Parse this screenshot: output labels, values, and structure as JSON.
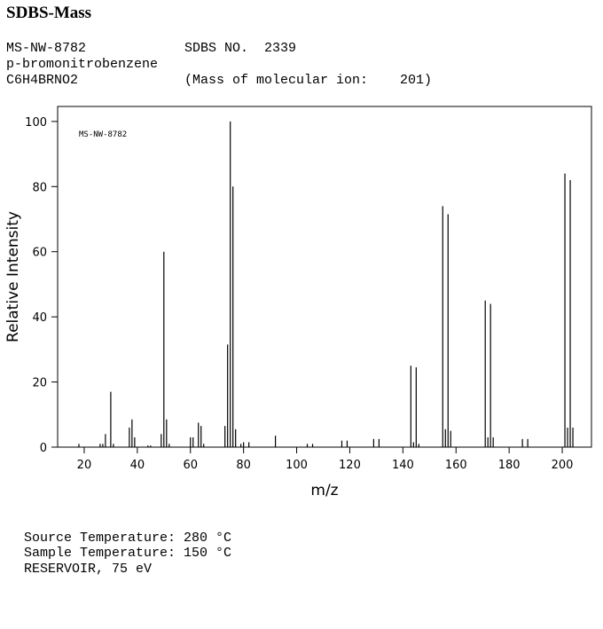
{
  "header": {
    "title": "SDBS-Mass",
    "code": "MS-NW-8782",
    "sdbs_no": "SDBS NO.  2339",
    "compound": "p-bromonitrobenzene",
    "formula": "C6H4BRNO2",
    "molecular_ion": "(Mass of molecular ion:    201)"
  },
  "chart_data": {
    "type": "stem",
    "annotation": "MS-NW-8782",
    "x_label": "m/z",
    "y_label": "Relative Intensity",
    "x": [
      18,
      26,
      27,
      28,
      30,
      31,
      37,
      38,
      39,
      44,
      45,
      49,
      50,
      51,
      52,
      60,
      61,
      63,
      64,
      65,
      73,
      74,
      75,
      76,
      77,
      79,
      80,
      82,
      92,
      104,
      106,
      117,
      119,
      129,
      131,
      143,
      144,
      145,
      146,
      155,
      156,
      157,
      158,
      171,
      172,
      173,
      174,
      185,
      187,
      201,
      202,
      203,
      204
    ],
    "series": [
      {
        "color": "#000000",
        "values": [
          1,
          1,
          1,
          4,
          17,
          1,
          6,
          8.5,
          3,
          0.5,
          0.5,
          4,
          60,
          8.5,
          1,
          3,
          3,
          7.5,
          6.5,
          1,
          6.5,
          31.5,
          100,
          80,
          5.5,
          1,
          1.5,
          1.5,
          3.5,
          1,
          1,
          2,
          2,
          2.5,
          2.5,
          25,
          1.5,
          24.5,
          1,
          74,
          5.5,
          71.5,
          5,
          45,
          3,
          44,
          3,
          2.5,
          2.5,
          84,
          6,
          82,
          6
        ]
      }
    ],
    "xlim": [
      10,
      211
    ],
    "xticks": [
      20,
      40,
      60,
      80,
      100,
      120,
      140,
      160,
      180,
      200
    ],
    "ylim": [
      0,
      104.6
    ],
    "yticks": [
      0,
      20,
      40,
      60,
      80,
      100
    ]
  },
  "footer": {
    "lines": [
      "Source Temperature: 280 °C",
      "Sample Temperature: 150 °C",
      "RESERVOIR, 75 eV"
    ]
  }
}
